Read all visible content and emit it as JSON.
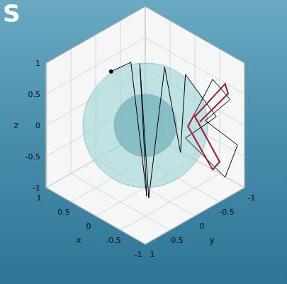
{
  "chart_data": {
    "type": "line3d",
    "title": "S",
    "xlabel": "x",
    "ylabel": "y",
    "zlabel": "z",
    "xlim": [
      -1,
      1
    ],
    "ylim": [
      -1,
      1
    ],
    "zlim": [
      -1,
      1
    ],
    "xticks": [
      -1,
      -0.5,
      0,
      0.5,
      1
    ],
    "yticks": [
      -1,
      -0.5,
      0,
      0.5,
      1
    ],
    "zticks": [
      -1,
      -0.5,
      0,
      0.5,
      1
    ],
    "grid": true,
    "spheres": [
      {
        "center": [
          0,
          0,
          0
        ],
        "radius": 1,
        "color": "#9fd3d6"
      },
      {
        "center": [
          0,
          0,
          0
        ],
        "radius": 0.5,
        "color": "#5fa9b0"
      }
    ],
    "series": [
      {
        "color": "#000000",
        "marker": "start",
        "x": [
          0.69,
          0.29,
          -0.53,
          0.11,
          -0.57,
          -0.19,
          -0.36,
          -0.21,
          -0.63,
          -0.31,
          -0.71,
          -0.86,
          -0.51,
          -0.76,
          -0.56,
          -0.4
        ],
        "y": [
          0,
          0,
          0.5,
          0,
          0.5,
          -0.2,
          -0.35,
          -0.6,
          -0.8,
          -0.5,
          -0.9,
          -1,
          -0.7,
          -0.95,
          -0.8,
          -0.6
        ],
        "z": [
          0.55,
          0.88,
          -0.67,
          0.94,
          -0.68,
          0.93,
          -0.43,
          0.64,
          0.06,
          -0.29,
          -0.92,
          -0.38,
          -0.01,
          0.33,
          0.63,
          0.1
        ]
      },
      {
        "color": "#a0192f",
        "x": [
          -0.4,
          -0.36,
          -0.66,
          -0.7,
          -0.4,
          -0.71,
          -0.77,
          -0.5
        ],
        "y": [
          -0.6,
          -0.5,
          -0.7,
          -0.8,
          -0.6,
          -0.9,
          -0.9,
          -0.6
        ],
        "z": [
          0.1,
          -0.08,
          -0.73,
          -0.63,
          0.05,
          0.58,
          0.45,
          0.01
        ]
      }
    ]
  }
}
